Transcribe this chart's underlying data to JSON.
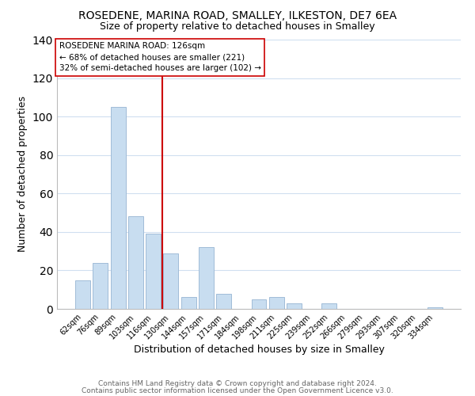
{
  "title": "ROSEDENE, MARINA ROAD, SMALLEY, ILKESTON, DE7 6EA",
  "subtitle": "Size of property relative to detached houses in Smalley",
  "xlabel": "Distribution of detached houses by size in Smalley",
  "ylabel": "Number of detached properties",
  "bar_labels": [
    "62sqm",
    "76sqm",
    "89sqm",
    "103sqm",
    "116sqm",
    "130sqm",
    "144sqm",
    "157sqm",
    "171sqm",
    "184sqm",
    "198sqm",
    "211sqm",
    "225sqm",
    "239sqm",
    "252sqm",
    "266sqm",
    "279sqm",
    "293sqm",
    "307sqm",
    "320sqm",
    "334sqm"
  ],
  "bar_values": [
    15,
    24,
    105,
    48,
    39,
    29,
    6,
    32,
    8,
    0,
    5,
    6,
    3,
    0,
    3,
    0,
    0,
    0,
    0,
    0,
    1
  ],
  "bar_color": "#c8ddf0",
  "bar_edge_color": "#a0bcd8",
  "vline_color": "#cc0000",
  "vline_index": 4.5,
  "ylim": [
    0,
    140
  ],
  "annotation_title": "ROSEDENE MARINA ROAD: 126sqm",
  "annotation_line1": "← 68% of detached houses are smaller (221)",
  "annotation_line2": "32% of semi-detached houses are larger (102) →",
  "annotation_box_color": "#ffffff",
  "annotation_box_edge": "#cc0000",
  "footer1": "Contains HM Land Registry data © Crown copyright and database right 2024.",
  "footer2": "Contains public sector information licensed under the Open Government Licence v3.0.",
  "background_color": "#ffffff",
  "grid_color": "#d0dff0",
  "title_fontsize": 10,
  "subtitle_fontsize": 9,
  "ylabel_fontsize": 9,
  "xlabel_fontsize": 9,
  "tick_fontsize": 7,
  "annotation_fontsize": 7.5,
  "footer_fontsize": 6.5
}
